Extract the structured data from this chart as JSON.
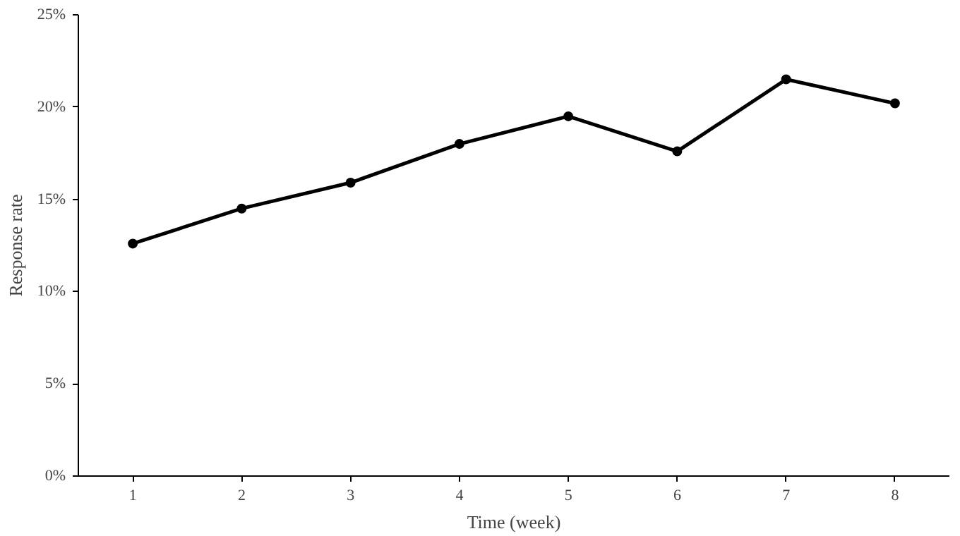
{
  "chart_data": {
    "type": "line",
    "xlabel": "Time (week)",
    "ylabel": "Response rate",
    "x": [
      1,
      2,
      3,
      4,
      5,
      6,
      7,
      8
    ],
    "series": [
      {
        "color": "#000000",
        "values": [
          12.6,
          14.5,
          15.9,
          18.0,
          19.5,
          17.6,
          21.5,
          20.2
        ]
      }
    ],
    "xlim": [
      0.5,
      8.5
    ],
    "xticks": [
      1,
      2,
      3,
      4,
      5,
      6,
      7,
      8
    ],
    "ylim": [
      0,
      25
    ],
    "yticks": [
      {
        "value": 0,
        "label": "0%"
      },
      {
        "value": 5,
        "label": "5%"
      },
      {
        "value": 10,
        "label": "10%"
      },
      {
        "value": 15,
        "label": "15%"
      },
      {
        "value": 20,
        "label": "20%"
      },
      {
        "value": 25,
        "label": "25%"
      }
    ],
    "grid": false,
    "marker": "circle",
    "line_style": "solid"
  }
}
